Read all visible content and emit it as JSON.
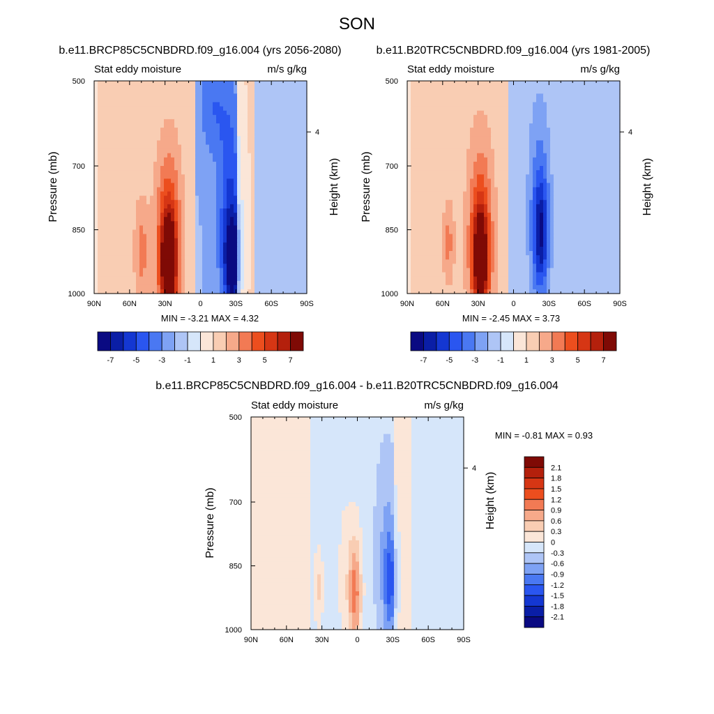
{
  "figure": {
    "title": "SON"
  },
  "colors": {
    "scale": [
      "#0a0a82",
      "#0a1ea6",
      "#1437d2",
      "#2a56f0",
      "#4a78f2",
      "#7ea2f4",
      "#aec5f6",
      "#d6e6fa",
      "#fbe6d8",
      "#f9cdb3",
      "#f6a98a",
      "#f27a54",
      "#ec4e1e",
      "#d63614",
      "#b4200c",
      "#7f0a05"
    ]
  },
  "chart_data": [
    {
      "type": "heatmap",
      "panel": "future",
      "title": "b.e11.BRCP85C5CNBDRD.f09_g16.004 (yrs 2056-2080)",
      "left_label": "Stat eddy moisture",
      "right_label": "m/s g/kg",
      "ylabel": "Pressure (mb)",
      "ylabel_right": "Height (km)",
      "x_ticks": [
        "90N",
        "60N",
        "30N",
        "0",
        "30S",
        "60S",
        "90S"
      ],
      "y_ticks": [
        "500",
        "700",
        "850",
        "1000"
      ],
      "y_tick_values": [
        500,
        700,
        850,
        1000
      ],
      "height_ticks": [
        "4"
      ],
      "height_tick_pressure": [
        620
      ],
      "min_label": "MIN =  -3.21  MAX =   4.32",
      "min": -3.21,
      "max": 4.32,
      "colorbar_labels": [
        "-7",
        "-5",
        "-3",
        "-1",
        "1",
        "3",
        "5",
        "7"
      ],
      "colorbar_levels": [
        -7,
        -6,
        -5,
        -4,
        -3,
        -2,
        -1,
        0,
        1,
        2,
        3,
        4,
        5,
        6,
        7
      ],
      "features": [
        {
          "lat": 27,
          "p": 930,
          "value": 4.3,
          "lat_w": 6,
          "p_w": 110
        },
        {
          "lat": 27,
          "p": 880,
          "value": 2.4,
          "lat_w": 11,
          "p_w": 220
        },
        {
          "lat": 50,
          "p": 900,
          "value": 1.3,
          "lat_w": 6,
          "p_w": 120
        },
        {
          "lat": -27,
          "p": 920,
          "value": -3.2,
          "lat_w": 6,
          "p_w": 100
        },
        {
          "lat": -25,
          "p": 820,
          "value": -1.9,
          "lat_w": 10,
          "p_w": 280
        },
        {
          "lat": -10,
          "p": 560,
          "value": -1.1,
          "lat_w": 12,
          "p_w": 120
        }
      ],
      "base_bands": [
        {
          "from": 90,
          "to": 88,
          "value": 0.0
        },
        {
          "from": 88,
          "to": 3,
          "value": 0.8
        },
        {
          "from": 3,
          "to": -30,
          "value": -1.2
        },
        {
          "from": -30,
          "to": -45,
          "value": 0.7
        },
        {
          "from": -45,
          "to": -90,
          "value": -0.6
        }
      ]
    },
    {
      "type": "heatmap",
      "panel": "historical",
      "title": "b.e11.B20TRC5CNBDRD.f09_g16.004 (yrs 1981-2005)",
      "left_label": "Stat eddy moisture",
      "right_label": "m/s g/kg",
      "ylabel": "Pressure (mb)",
      "ylabel_right": "Height (km)",
      "x_ticks": [
        "90N",
        "60N",
        "30N",
        "0",
        "30S",
        "60S",
        "90S"
      ],
      "y_ticks": [
        "500",
        "700",
        "850",
        "1000"
      ],
      "y_tick_values": [
        500,
        700,
        850,
        1000
      ],
      "height_ticks": [
        "4"
      ],
      "height_tick_pressure": [
        620
      ],
      "min_label": "MIN =  -2.45  MAX =   3.73",
      "min": -2.45,
      "max": 3.73,
      "colorbar_labels": [
        "-7",
        "-5",
        "-3",
        "-1",
        "1",
        "3",
        "5",
        "7"
      ],
      "colorbar_levels": [
        -7,
        -6,
        -5,
        -4,
        -3,
        -2,
        -1,
        0,
        1,
        2,
        3,
        4,
        5,
        6,
        7
      ],
      "features": [
        {
          "lat": 28,
          "p": 920,
          "value": 3.7,
          "lat_w": 6,
          "p_w": 110
        },
        {
          "lat": 28,
          "p": 870,
          "value": 2.2,
          "lat_w": 11,
          "p_w": 230
        },
        {
          "lat": 55,
          "p": 880,
          "value": 1.2,
          "lat_w": 5,
          "p_w": 100
        },
        {
          "lat": -23,
          "p": 860,
          "value": -2.4,
          "lat_w": 6,
          "p_w": 120
        },
        {
          "lat": -22,
          "p": 800,
          "value": -1.5,
          "lat_w": 10,
          "p_w": 260
        }
      ],
      "base_bands": [
        {
          "from": 90,
          "to": 88,
          "value": 0.0
        },
        {
          "from": 88,
          "to": 5,
          "value": 0.8
        },
        {
          "from": 5,
          "to": -90,
          "value": -0.7
        }
      ]
    },
    {
      "type": "heatmap",
      "panel": "difference",
      "title": "b.e11.BRCP85C5CNBDRD.f09_g16.004 - b.e11.B20TRC5CNBDRD.f09_g16.004",
      "left_label": "Stat eddy moisture",
      "right_label": "m/s g/kg",
      "ylabel": "Pressure (mb)",
      "ylabel_right": "Height (km)",
      "x_ticks": [
        "90N",
        "60N",
        "30N",
        "0",
        "30S",
        "60S",
        "90S"
      ],
      "y_ticks": [
        "500",
        "700",
        "850",
        "1000"
      ],
      "y_tick_values": [
        500,
        700,
        850,
        1000
      ],
      "height_ticks": [
        "4"
      ],
      "height_tick_pressure": [
        620
      ],
      "min_label": "MIN =  -0.81  MAX =    0.93",
      "min": -0.81,
      "max": 0.93,
      "colorbar_labels": [
        "2.1",
        "1.8",
        "1.5",
        "1.2",
        "0.9",
        "0.6",
        "0.3",
        "0",
        "-0.3",
        "-0.6",
        "-0.9",
        "-1.2",
        "-1.5",
        "-1.8",
        "-2.1"
      ],
      "colorbar_levels": [
        2.1,
        1.8,
        1.5,
        1.2,
        0.9,
        0.6,
        0.3,
        0,
        -0.3,
        -0.6,
        -0.9,
        -1.2,
        -1.5,
        -1.8,
        -2.1
      ],
      "features": [
        {
          "lat": 2,
          "p": 920,
          "value": 0.9,
          "lat_w": 5,
          "p_w": 110
        },
        {
          "lat": 5,
          "p": 880,
          "value": 0.45,
          "lat_w": 10,
          "p_w": 200
        },
        {
          "lat": 33,
          "p": 900,
          "value": 0.5,
          "lat_w": 4,
          "p_w": 90
        },
        {
          "lat": -28,
          "p": 890,
          "value": -0.8,
          "lat_w": 5,
          "p_w": 110
        },
        {
          "lat": -25,
          "p": 830,
          "value": -0.5,
          "lat_w": 9,
          "p_w": 230
        }
      ],
      "base_bands": [
        {
          "from": 90,
          "to": 40,
          "value": 0.15
        },
        {
          "from": 40,
          "to": 10,
          "value": -0.15
        },
        {
          "from": 10,
          "to": -30,
          "value": -0.2
        },
        {
          "from": -30,
          "to": -45,
          "value": 0.15
        },
        {
          "from": -45,
          "to": -90,
          "value": -0.15
        }
      ]
    }
  ]
}
